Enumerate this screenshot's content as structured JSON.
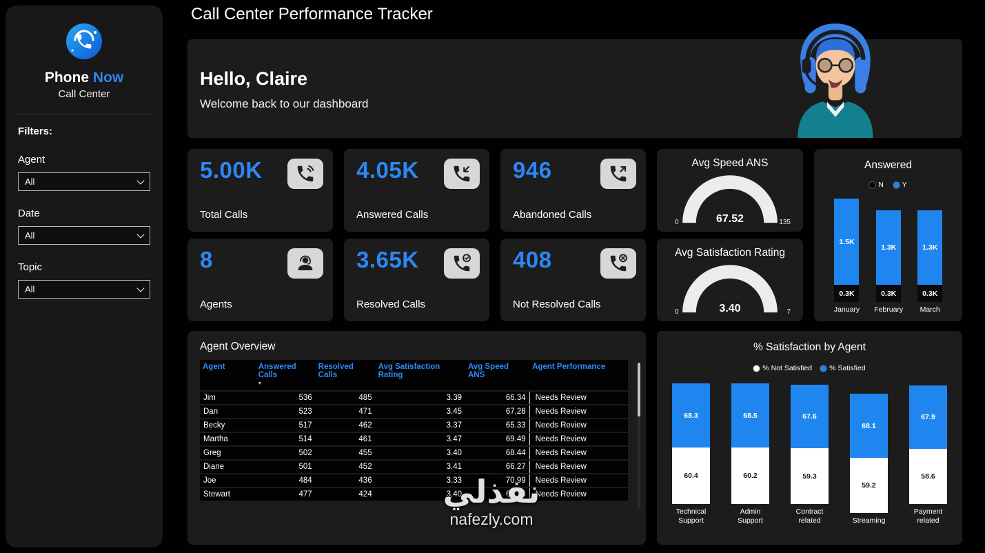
{
  "page_title": "Call Center Performance Tracker",
  "colors": {
    "accent": "#2d86f3",
    "bar_blue": "#1f86f0",
    "bar_dark": "#0a0a0a",
    "bar_white": "#ffffff",
    "card_bg": "#1c1c1c"
  },
  "sidebar": {
    "logo": {
      "brand_primary": "Phone",
      "brand_accent": "Now",
      "subtitle": "Call Center",
      "icon": "phone-now-logo"
    },
    "filters_label": "Filters:",
    "filters": [
      {
        "label": "Agent",
        "value": "All"
      },
      {
        "label": "Date",
        "value": "All"
      },
      {
        "label": "Topic",
        "value": "All"
      }
    ]
  },
  "hero": {
    "greeting": "Hello, Claire",
    "subtitle": "Welcome back to our dashboard"
  },
  "kpis": [
    {
      "value": "5.00K",
      "label": "Total Calls",
      "icon": "ringing-phone-icon"
    },
    {
      "value": "4.05K",
      "label": "Answered Calls",
      "icon": "answered-call-icon"
    },
    {
      "value": "946",
      "label": "Abandoned Calls",
      "icon": "abandoned-call-icon"
    },
    {
      "value": "8",
      "label": "Agents",
      "icon": "agent-headset-icon"
    },
    {
      "value": "3.65K",
      "label": "Resolved Calls",
      "icon": "resolved-call-icon"
    },
    {
      "value": "408",
      "label": "Not Resolved Calls",
      "icon": "not-resolved-call-icon"
    }
  ],
  "watermark": {
    "line1": "نفذلي",
    "line2": "nafezly.com"
  },
  "chart_data": [
    {
      "id": "avg_speed_gauge",
      "type": "gauge",
      "title": "Avg Speed ANS",
      "min": 0,
      "max": 135,
      "value": 67.52,
      "value_label": "67.52"
    },
    {
      "id": "avg_satisfaction_gauge",
      "type": "gauge",
      "title": "Avg Satisfaction Rating",
      "min": 0,
      "max": 7,
      "value": 3.4,
      "value_label": "3.40"
    },
    {
      "id": "answered_by_month",
      "type": "bar",
      "stacked": true,
      "title": "Answered",
      "categories": [
        "January",
        "February",
        "March"
      ],
      "series": [
        {
          "name": "N",
          "color": "#0a0a0a",
          "label_color": "#ffffff",
          "values": [
            0.3,
            0.3,
            0.3
          ],
          "labels": [
            "0.3K",
            "0.3K",
            "0.3K"
          ]
        },
        {
          "name": "Y",
          "color": "#1f86f0",
          "label_color": "#ffffff",
          "values": [
            1.5,
            1.3,
            1.3
          ],
          "labels": [
            "1.5K",
            "1.3K",
            "1.3K"
          ]
        }
      ],
      "ylim": [
        0,
        1.8
      ],
      "legend_position": "top"
    },
    {
      "id": "satisfaction_by_agent",
      "type": "bar",
      "stacked": true,
      "title": "% Satisfaction by Agent",
      "categories": [
        "Technical Support",
        "Admin Support",
        "Contract related",
        "Streaming",
        "Payment related"
      ],
      "series": [
        {
          "name": "% Not Satisfied",
          "color": "#ffffff",
          "label_color": "#1a1a1a",
          "values": [
            60.4,
            60.2,
            59.3,
            59.2,
            58.6
          ]
        },
        {
          "name": "% Satisfied",
          "color": "#1f86f0",
          "label_color": "#ffffff",
          "values": [
            68.3,
            68.5,
            67.6,
            68.1,
            67.9
          ]
        }
      ],
      "legend_position": "top"
    },
    {
      "id": "agent_overview",
      "type": "table",
      "title": "Agent Overview",
      "columns": [
        "Agent",
        "Answered Calls",
        "Resolved Calls",
        "Avg Satisfaction Rating",
        "Avg Speed ANS",
        "Agent Performance"
      ],
      "sort": {
        "column_index": 1,
        "glyph": "▾"
      },
      "rows": [
        [
          "Jim",
          "536",
          "485",
          "3.39",
          "66.34",
          "Needs Review"
        ],
        [
          "Dan",
          "523",
          "471",
          "3.45",
          "67.28",
          "Needs Review"
        ],
        [
          "Becky",
          "517",
          "462",
          "3.37",
          "65.33",
          "Needs Review"
        ],
        [
          "Martha",
          "514",
          "461",
          "3.47",
          "69.49",
          "Needs Review"
        ],
        [
          "Greg",
          "502",
          "455",
          "3.40",
          "68.44",
          "Needs Review"
        ],
        [
          "Diane",
          "501",
          "452",
          "3.41",
          "66.27",
          "Needs Review"
        ],
        [
          "Joe",
          "484",
          "436",
          "3.33",
          "70.99",
          "Needs Review"
        ],
        [
          "Stewart",
          "477",
          "424",
          "3.40",
          "66.18",
          "Needs Review"
        ]
      ]
    }
  ]
}
